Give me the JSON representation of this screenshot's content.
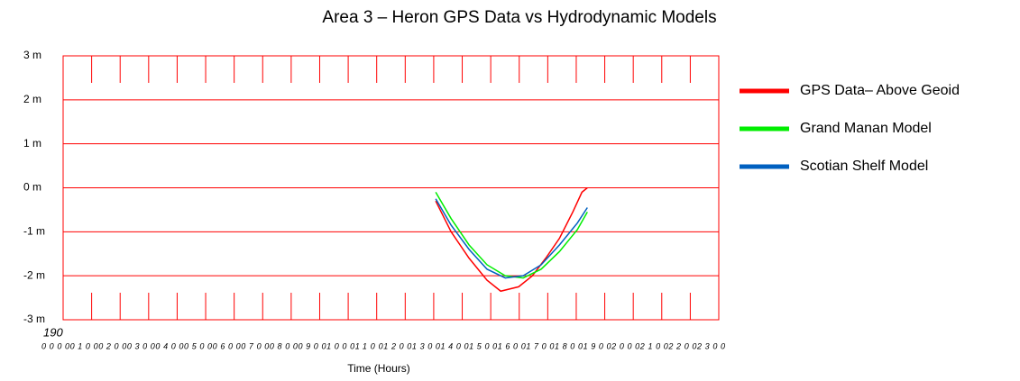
{
  "chart_data": {
    "type": "line",
    "title": "Area 3 – Heron GPS Data  vs Hydrodynamic Models",
    "xlabel": "Time (Hours)",
    "annotation": "190",
    "xlim": [
      0,
      23
    ],
    "xticks": [
      {
        "value": 0,
        "label": "0000"
      },
      {
        "value": 1,
        "label": "0100"
      },
      {
        "value": 2,
        "label": "0200"
      },
      {
        "value": 3,
        "label": "0300"
      },
      {
        "value": 4,
        "label": "0400"
      },
      {
        "value": 5,
        "label": "0500"
      },
      {
        "value": 6,
        "label": "0600"
      },
      {
        "value": 7,
        "label": "0700"
      },
      {
        "value": 8,
        "label": "0800"
      },
      {
        "value": 9,
        "label": "0900"
      },
      {
        "value": 10,
        "label": "1000"
      },
      {
        "value": 11,
        "label": "1100"
      },
      {
        "value": 12,
        "label": "1200"
      },
      {
        "value": 13,
        "label": "1300"
      },
      {
        "value": 14,
        "label": "1400"
      },
      {
        "value": 15,
        "label": "1500"
      },
      {
        "value": 16,
        "label": "1600"
      },
      {
        "value": 17,
        "label": "1700"
      },
      {
        "value": 18,
        "label": "1800"
      },
      {
        "value": 19,
        "label": "1900"
      },
      {
        "value": 20,
        "label": "2000"
      },
      {
        "value": 21,
        "label": "2100"
      },
      {
        "value": 22,
        "label": "2200"
      },
      {
        "value": 23,
        "label": "2300"
      }
    ],
    "ylim": [
      -3,
      3
    ],
    "yticks": [
      {
        "value": 3,
        "label": "3 m"
      },
      {
        "value": 2,
        "label": "2 m"
      },
      {
        "value": 1,
        "label": "1 m"
      },
      {
        "value": 0,
        "label": "0 m"
      },
      {
        "value": -1,
        "label": "-1 m"
      },
      {
        "value": -2,
        "label": "-2 m"
      },
      {
        "value": -3,
        "label": "-3 m"
      }
    ],
    "grid": true,
    "legend": "right",
    "series": [
      {
        "name": "GPS Data– Above Geoid",
        "color": "#ff0000",
        "x": [
          13.07,
          13.61,
          14.24,
          14.87,
          15.35,
          15.98,
          16.46,
          16.93,
          17.41,
          17.88,
          18.2,
          18.39
        ],
        "values": [
          -0.3,
          -1.0,
          -1.6,
          -2.1,
          -2.35,
          -2.25,
          -2.0,
          -1.6,
          -1.15,
          -0.55,
          -0.1,
          0.0
        ]
      },
      {
        "name": "Grand Manan Model",
        "color": "#00ee00",
        "x": [
          13.07,
          13.61,
          14.24,
          14.87,
          15.51,
          16.14,
          16.77,
          17.41,
          18.04,
          18.39
        ],
        "values": [
          -0.1,
          -0.7,
          -1.3,
          -1.75,
          -2.0,
          -2.05,
          -1.85,
          -1.45,
          -0.95,
          -0.55
        ]
      },
      {
        "name": "Scotian Shelf Model",
        "color": "#0060c0",
        "x": [
          13.07,
          13.61,
          14.24,
          14.87,
          15.51,
          16.14,
          16.77,
          17.41,
          18.04,
          18.39
        ],
        "values": [
          -0.25,
          -0.85,
          -1.4,
          -1.85,
          -2.05,
          -2.0,
          -1.75,
          -1.3,
          -0.8,
          -0.45
        ]
      }
    ]
  }
}
